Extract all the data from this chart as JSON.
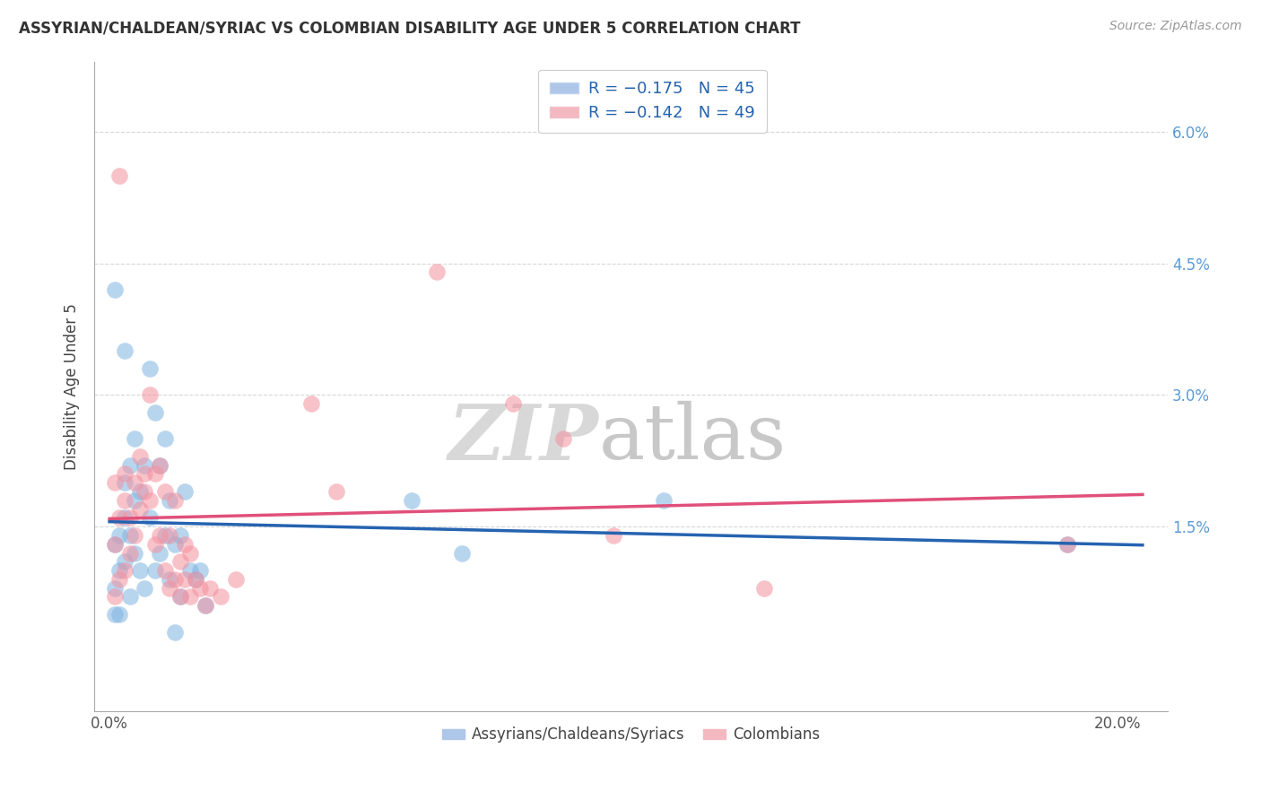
{
  "title": "ASSYRIAN/CHALDEAN/SYRIAC VS COLOMBIAN DISABILITY AGE UNDER 5 CORRELATION CHART",
  "source": "Source: ZipAtlas.com",
  "ylabel": "Disability Age Under 5",
  "xlabel_ticks": [
    "0.0%",
    "20.0%"
  ],
  "xlabel_vals": [
    0.0,
    0.2
  ],
  "ylabel_ticks": [
    "1.5%",
    "3.0%",
    "4.5%",
    "6.0%"
  ],
  "ylabel_vals": [
    0.015,
    0.03,
    0.045,
    0.06
  ],
  "xlim": [
    -0.003,
    0.21
  ],
  "ylim": [
    -0.006,
    0.068
  ],
  "legend_label_blue": "Assyrians/Chaldeans/Syriacs",
  "legend_label_pink": "Colombians",
  "watermark_zip": "ZIP",
  "watermark_atlas": "atlas",
  "blue_color": "#7eb3e0",
  "pink_color": "#f4909e",
  "trend_blue": "#2563b0",
  "trend_pink": "#e0507a",
  "blue_scatter": [
    [
      0.001,
      0.005
    ],
    [
      0.001,
      0.008
    ],
    [
      0.001,
      0.013
    ],
    [
      0.002,
      0.005
    ],
    [
      0.002,
      0.01
    ],
    [
      0.002,
      0.014
    ],
    [
      0.003,
      0.011
    ],
    [
      0.003,
      0.016
    ],
    [
      0.003,
      0.02
    ],
    [
      0.004,
      0.007
    ],
    [
      0.004,
      0.014
    ],
    [
      0.004,
      0.022
    ],
    [
      0.005,
      0.012
    ],
    [
      0.005,
      0.018
    ],
    [
      0.005,
      0.025
    ],
    [
      0.006,
      0.01
    ],
    [
      0.006,
      0.019
    ],
    [
      0.007,
      0.008
    ],
    [
      0.007,
      0.022
    ],
    [
      0.008,
      0.016
    ],
    [
      0.008,
      0.033
    ],
    [
      0.009,
      0.01
    ],
    [
      0.009,
      0.028
    ],
    [
      0.01,
      0.012
    ],
    [
      0.01,
      0.022
    ],
    [
      0.011,
      0.014
    ],
    [
      0.011,
      0.025
    ],
    [
      0.012,
      0.009
    ],
    [
      0.012,
      0.018
    ],
    [
      0.013,
      0.003
    ],
    [
      0.013,
      0.013
    ],
    [
      0.014,
      0.007
    ],
    [
      0.014,
      0.014
    ],
    [
      0.015,
      0.019
    ],
    [
      0.016,
      0.01
    ],
    [
      0.017,
      0.009
    ],
    [
      0.018,
      0.01
    ],
    [
      0.019,
      0.006
    ],
    [
      0.001,
      0.042
    ],
    [
      0.003,
      0.035
    ],
    [
      0.06,
      0.018
    ],
    [
      0.07,
      0.012
    ],
    [
      0.11,
      0.018
    ],
    [
      0.19,
      0.013
    ]
  ],
  "pink_scatter": [
    [
      0.001,
      0.007
    ],
    [
      0.001,
      0.013
    ],
    [
      0.001,
      0.02
    ],
    [
      0.002,
      0.009
    ],
    [
      0.002,
      0.016
    ],
    [
      0.002,
      0.055
    ],
    [
      0.003,
      0.01
    ],
    [
      0.003,
      0.018
    ],
    [
      0.003,
      0.021
    ],
    [
      0.004,
      0.012
    ],
    [
      0.004,
      0.016
    ],
    [
      0.005,
      0.014
    ],
    [
      0.005,
      0.02
    ],
    [
      0.006,
      0.017
    ],
    [
      0.006,
      0.023
    ],
    [
      0.007,
      0.019
    ],
    [
      0.007,
      0.021
    ],
    [
      0.008,
      0.018
    ],
    [
      0.008,
      0.03
    ],
    [
      0.009,
      0.013
    ],
    [
      0.009,
      0.021
    ],
    [
      0.01,
      0.014
    ],
    [
      0.01,
      0.022
    ],
    [
      0.011,
      0.01
    ],
    [
      0.011,
      0.019
    ],
    [
      0.012,
      0.008
    ],
    [
      0.012,
      0.014
    ],
    [
      0.013,
      0.009
    ],
    [
      0.013,
      0.018
    ],
    [
      0.014,
      0.007
    ],
    [
      0.014,
      0.011
    ],
    [
      0.015,
      0.009
    ],
    [
      0.015,
      0.013
    ],
    [
      0.016,
      0.007
    ],
    [
      0.016,
      0.012
    ],
    [
      0.017,
      0.009
    ],
    [
      0.018,
      0.008
    ],
    [
      0.019,
      0.006
    ],
    [
      0.02,
      0.008
    ],
    [
      0.022,
      0.007
    ],
    [
      0.025,
      0.009
    ],
    [
      0.04,
      0.029
    ],
    [
      0.045,
      0.019
    ],
    [
      0.065,
      0.044
    ],
    [
      0.08,
      0.029
    ],
    [
      0.09,
      0.025
    ],
    [
      0.1,
      0.014
    ],
    [
      0.13,
      0.008
    ],
    [
      0.19,
      0.013
    ]
  ]
}
